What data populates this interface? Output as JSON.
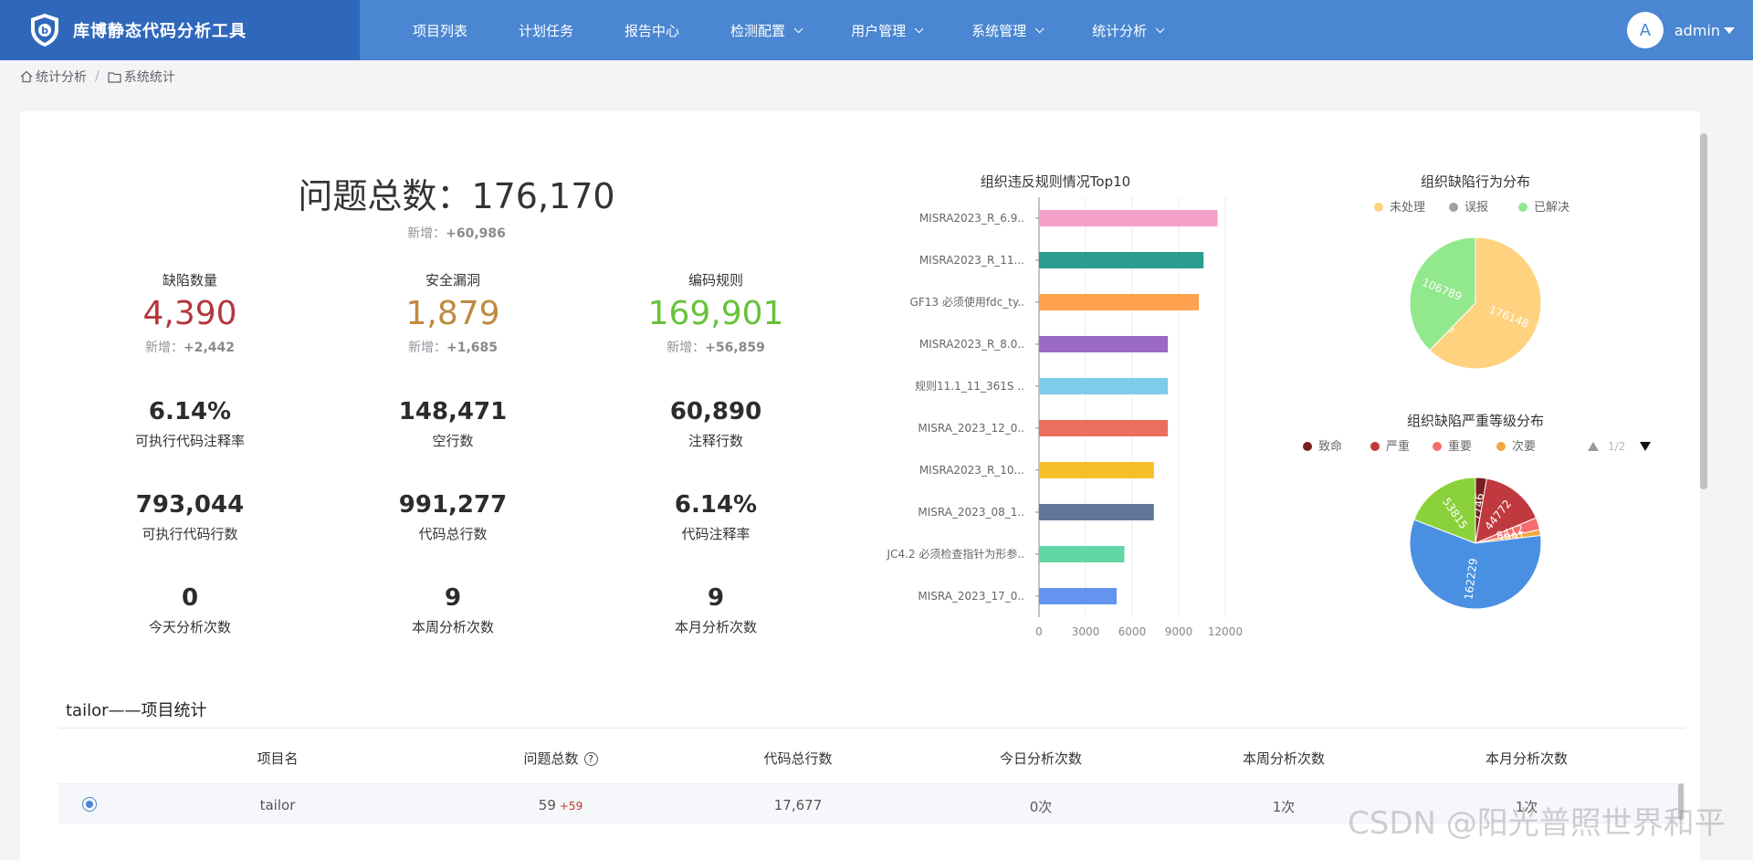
{
  "app": {
    "title": "库博静态代码分析工具"
  },
  "nav": {
    "items": [
      {
        "label": "项目列表",
        "dropdown": false
      },
      {
        "label": "计划任务",
        "dropdown": false
      },
      {
        "label": "报告中心",
        "dropdown": false
      },
      {
        "label": "检测配置",
        "dropdown": true
      },
      {
        "label": "用户管理",
        "dropdown": true
      },
      {
        "label": "系统管理",
        "dropdown": true
      },
      {
        "label": "统计分析",
        "dropdown": true
      }
    ]
  },
  "user": {
    "avatar_letter": "A",
    "name": "admin"
  },
  "breadcrumb": {
    "items": [
      "统计分析",
      "系统统计"
    ],
    "separator": "/"
  },
  "summary": {
    "total_label": "问题总数：",
    "total_value": "176,170",
    "total_new_label": "新增：",
    "total_new_value": "+60,986"
  },
  "categories": [
    {
      "label": "缺陷数量",
      "value": "4,390",
      "color": "#b3363c",
      "new_label": "新增：",
      "new_value": "+2,442"
    },
    {
      "label": "安全漏洞",
      "value": "1,879",
      "color": "#c08a3e",
      "new_label": "新增：",
      "new_value": "+1,685"
    },
    {
      "label": "编码规则",
      "value": "169,901",
      "color": "#67c23a",
      "new_label": "新增：",
      "new_value": "+56,859"
    }
  ],
  "metrics": [
    {
      "value": "6.14%",
      "label": "可执行代码注释率"
    },
    {
      "value": "148,471",
      "label": "空行数"
    },
    {
      "value": "60,890",
      "label": "注释行数"
    },
    {
      "value": "793,044",
      "label": "可执行代码行数"
    },
    {
      "value": "991,277",
      "label": "代码总行数"
    },
    {
      "value": "6.14%",
      "label": "代码注释率"
    },
    {
      "value": "0",
      "label": "今天分析次数"
    },
    {
      "value": "9",
      "label": "本周分析次数"
    },
    {
      "value": "9",
      "label": "本月分析次数"
    }
  ],
  "chart_data": [
    {
      "type": "bar",
      "orientation": "horizontal",
      "title": "组织违反规则情况Top10",
      "categories": [
        "MISRA2023_R_6.9..",
        "MISRA2023_R_11...",
        "GF13 必须使用fdc_ty..",
        "MISRA2023_R_8.0..",
        "规则11.1_11_361S ..",
        "MISRA_2023_12_0..",
        "MISRA2023_R_10...",
        "MISRA_2023_08_1..",
        "JC4.2 必须检查指针为形参..",
        "MISRA_2023_17_0.."
      ],
      "values": [
        11500,
        10600,
        10300,
        8300,
        8300,
        8300,
        7400,
        7400,
        5500,
        5000
      ],
      "colors": [
        "#f5a0c8",
        "#2a9d8f",
        "#ffa14f",
        "#9b6bc4",
        "#7ecbeb",
        "#ec6e5e",
        "#f6bf2a",
        "#637599",
        "#62d7a6",
        "#6395f0"
      ],
      "xlim": [
        0,
        12000
      ],
      "xticks": [
        "0",
        "3000",
        "6000",
        "9000",
        "12000"
      ],
      "grid": true
    },
    {
      "type": "pie",
      "title": "组织缺陷行为分布",
      "legend": [
        "未处理",
        "误报",
        "已解决"
      ],
      "colors": [
        "#ffd27f",
        "#a0a0a0",
        "#92e88c"
      ],
      "values": [
        176148,
        6,
        106789
      ],
      "labels": [
        "176148",
        "6",
        "106789"
      ],
      "legend_position": "top"
    },
    {
      "type": "pie",
      "title": "组织缺陷严重等级分布",
      "legend": [
        "致命",
        "严重",
        "重要",
        "次要"
      ],
      "colors": [
        "#7a1f1f",
        "#c0393e",
        "#f56c6c",
        "#f5a640",
        "#4a90e2",
        "#8bd13a"
      ],
      "values": [
        7746,
        44772,
        8412,
        3991,
        162229,
        53815
      ],
      "labels": [
        "7746",
        "44772",
        "8412",
        "3991",
        "162229",
        "53815"
      ],
      "legend_position": "top",
      "legend_page": "1/2"
    }
  ],
  "project_section": {
    "title": "tailor——项目统计",
    "columns": [
      "项目名",
      "问题总数",
      "代码总行数",
      "今日分析次数",
      "本周分析次数",
      "本月分析次数"
    ],
    "rows": [
      {
        "name": "tailor",
        "issues": "59",
        "issues_new": "+59",
        "lines": "17,677",
        "today": "0次",
        "week": "1次",
        "month": "1次"
      }
    ]
  },
  "watermark": "CSDN @阳光普照世界和平"
}
